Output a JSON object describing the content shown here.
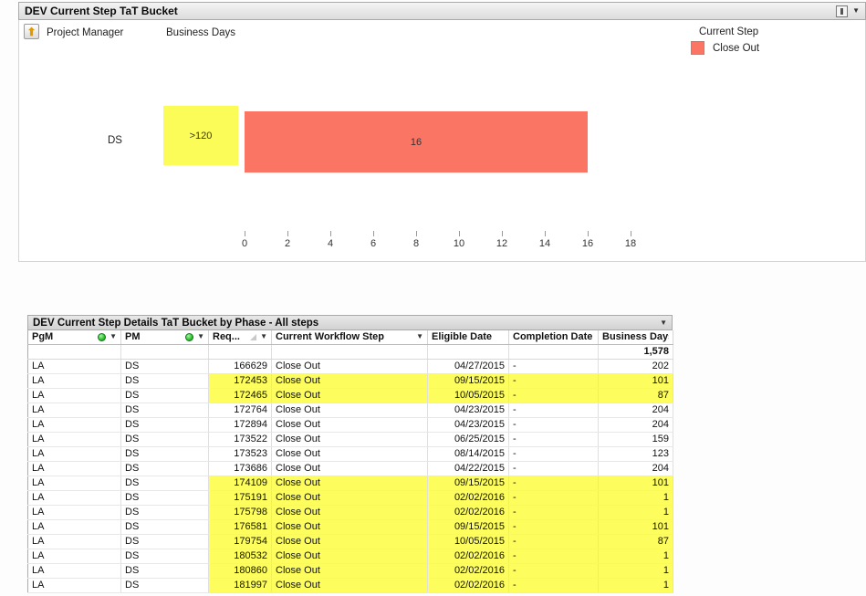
{
  "chart": {
    "title": "DEV Current Step TaT Bucket",
    "dimension_label": "Project Manager",
    "measure_label": "Business Days",
    "legend": {
      "title": "Current Step",
      "items": [
        {
          "label": "Close Out",
          "color": "#FB7565"
        }
      ]
    },
    "category": "DS",
    "bucket_label": ">120",
    "bar_value": "16",
    "x_ticks": [
      "0",
      "2",
      "4",
      "6",
      "8",
      "10",
      "12",
      "14",
      "16",
      "18"
    ],
    "colors": {
      "bar": "#FB7565",
      "bucket_yellow": "#FCFC59"
    }
  },
  "chart_data": {
    "type": "bar",
    "orientation": "horizontal",
    "title": "DEV Current Step TaT Bucket",
    "categories": [
      "DS"
    ],
    "series": [
      {
        "name": "Close Out",
        "values": [
          16
        ]
      }
    ],
    "bucket_labels": [
      ">120"
    ],
    "xlabel": "Business Days",
    "xlim": [
      0,
      18
    ],
    "x_ticks": [
      0,
      2,
      4,
      6,
      8,
      10,
      12,
      14,
      16,
      18
    ],
    "legend_position": "top-right",
    "grid": false
  },
  "table": {
    "title": "DEV Current Step Details TaT Bucket by Phase - All steps",
    "columns": [
      {
        "label": "PgM"
      },
      {
        "label": "PM"
      },
      {
        "label": "Req..."
      },
      {
        "label": "Current Workflow Step"
      },
      {
        "label": "Eligible Date"
      },
      {
        "label": "Completion Date"
      },
      {
        "label": "Business Days"
      }
    ],
    "total_business_days": "1,578",
    "highlight_color": "#FDFD5E",
    "rows": [
      {
        "pgm": "LA",
        "pm": "DS",
        "req": "166629",
        "step": "Close Out",
        "eligible": "04/27/2015",
        "completion": "-",
        "days": "202",
        "highlight": false
      },
      {
        "pgm": "LA",
        "pm": "DS",
        "req": "172453",
        "step": "Close Out",
        "eligible": "09/15/2015",
        "completion": "-",
        "days": "101",
        "highlight": true
      },
      {
        "pgm": "LA",
        "pm": "DS",
        "req": "172465",
        "step": "Close Out",
        "eligible": "10/05/2015",
        "completion": "-",
        "days": "87",
        "highlight": true
      },
      {
        "pgm": "LA",
        "pm": "DS",
        "req": "172764",
        "step": "Close Out",
        "eligible": "04/23/2015",
        "completion": "-",
        "days": "204",
        "highlight": false
      },
      {
        "pgm": "LA",
        "pm": "DS",
        "req": "172894",
        "step": "Close Out",
        "eligible": "04/23/2015",
        "completion": "-",
        "days": "204",
        "highlight": false
      },
      {
        "pgm": "LA",
        "pm": "DS",
        "req": "173522",
        "step": "Close Out",
        "eligible": "06/25/2015",
        "completion": "-",
        "days": "159",
        "highlight": false
      },
      {
        "pgm": "LA",
        "pm": "DS",
        "req": "173523",
        "step": "Close Out",
        "eligible": "08/14/2015",
        "completion": "-",
        "days": "123",
        "highlight": false
      },
      {
        "pgm": "LA",
        "pm": "DS",
        "req": "173686",
        "step": "Close Out",
        "eligible": "04/22/2015",
        "completion": "-",
        "days": "204",
        "highlight": false
      },
      {
        "pgm": "LA",
        "pm": "DS",
        "req": "174109",
        "step": "Close Out",
        "eligible": "09/15/2015",
        "completion": "-",
        "days": "101",
        "highlight": true
      },
      {
        "pgm": "LA",
        "pm": "DS",
        "req": "175191",
        "step": "Close Out",
        "eligible": "02/02/2016",
        "completion": "-",
        "days": "1",
        "highlight": true
      },
      {
        "pgm": "LA",
        "pm": "DS",
        "req": "175798",
        "step": "Close Out",
        "eligible": "02/02/2016",
        "completion": "-",
        "days": "1",
        "highlight": true
      },
      {
        "pgm": "LA",
        "pm": "DS",
        "req": "176581",
        "step": "Close Out",
        "eligible": "09/15/2015",
        "completion": "-",
        "days": "101",
        "highlight": true
      },
      {
        "pgm": "LA",
        "pm": "DS",
        "req": "179754",
        "step": "Close Out",
        "eligible": "10/05/2015",
        "completion": "-",
        "days": "87",
        "highlight": true
      },
      {
        "pgm": "LA",
        "pm": "DS",
        "req": "180532",
        "step": "Close Out",
        "eligible": "02/02/2016",
        "completion": "-",
        "days": "1",
        "highlight": true
      },
      {
        "pgm": "LA",
        "pm": "DS",
        "req": "180860",
        "step": "Close Out",
        "eligible": "02/02/2016",
        "completion": "-",
        "days": "1",
        "highlight": true
      },
      {
        "pgm": "LA",
        "pm": "DS",
        "req": "181997",
        "step": "Close Out",
        "eligible": "02/02/2016",
        "completion": "-",
        "days": "1",
        "highlight": true
      }
    ]
  }
}
